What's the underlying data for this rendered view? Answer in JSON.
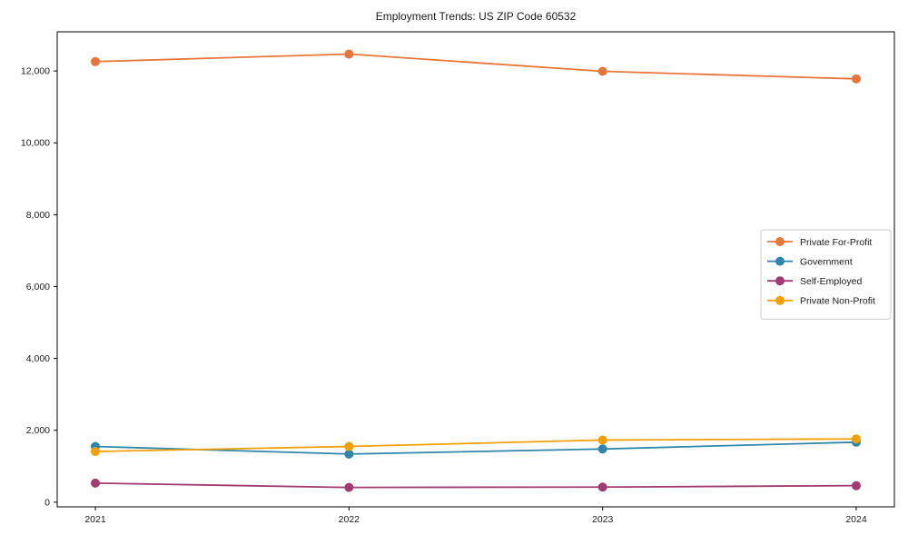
{
  "title": "Employment Trends: US ZIP Code 60532",
  "chart_data": {
    "type": "line",
    "title": "Employment Trends: US ZIP Code 60532",
    "categories": [
      "2021",
      "2022",
      "2023",
      "2024"
    ],
    "series": [
      {
        "name": "Private For-Profit",
        "color": "#E8763B",
        "values": [
          12260,
          12470,
          11990,
          11780
        ]
      },
      {
        "name": "Government",
        "color": "#2E86AB",
        "values": [
          1550,
          1340,
          1480,
          1670
        ]
      },
      {
        "name": "Self-Employed",
        "color": "#A23B72",
        "values": [
          530,
          410,
          420,
          460
        ]
      },
      {
        "name": "Private Non-Profit",
        "color": "#F2A104",
        "values": [
          1410,
          1550,
          1730,
          1760
        ]
      }
    ],
    "xlabel": "",
    "ylabel": "",
    "ylim": [
      -130,
      13090
    ],
    "yticks": [
      0,
      2000,
      4000,
      6000,
      8000,
      10000,
      12000
    ],
    "grid": false,
    "legend_position": "center-right",
    "axis_color": "#000000",
    "legend_border_color": "#cccccc",
    "marker": "circle"
  }
}
